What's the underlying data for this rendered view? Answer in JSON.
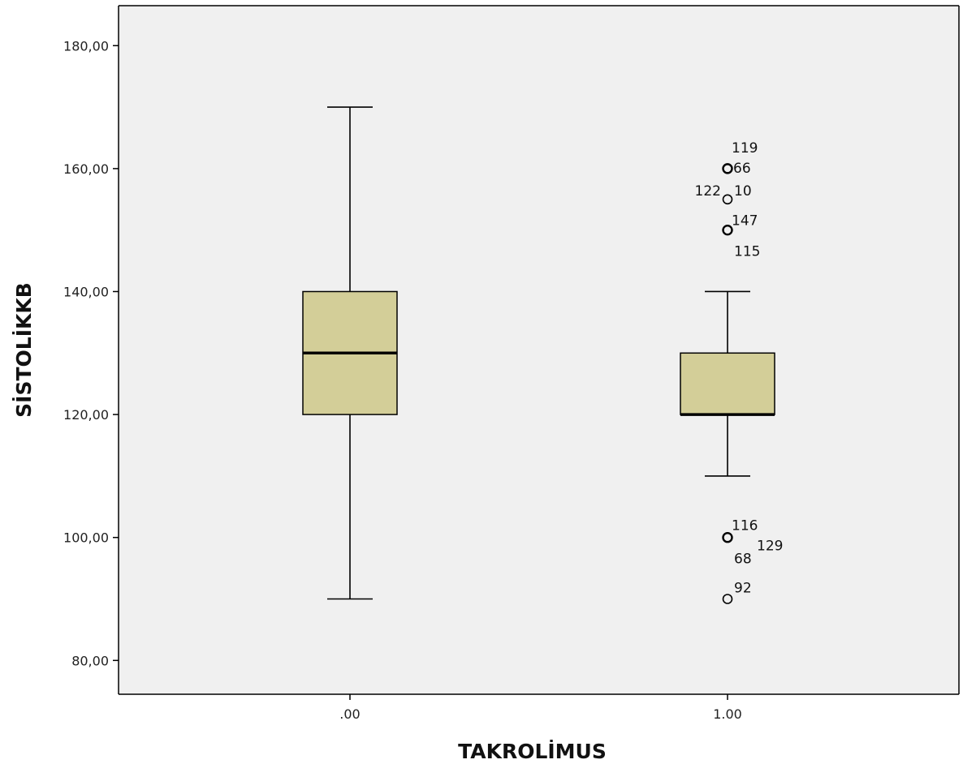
{
  "chart_data": {
    "type": "boxplot",
    "xlabel": "TAKROLİMUS",
    "ylabel": "SİSTOLİKKB",
    "ylim": [
      74.5,
      186.5
    ],
    "y_ticks": [
      80,
      100,
      120,
      140,
      160,
      180
    ],
    "y_tick_labels": [
      "80,00",
      "100,00",
      "120,00",
      "140,00",
      "160,00",
      "180,00"
    ],
    "categories": [
      ".00",
      "1.00"
    ],
    "grid": false,
    "colors": {
      "plot_background": "#f0f0f0",
      "box_fill": "#d3ce98",
      "stroke": "#000000"
    },
    "boxes": [
      {
        "category": ".00",
        "whisker_low": 90,
        "q1": 120,
        "median": 130,
        "q3": 140,
        "whisker_high": 170,
        "outliers": []
      },
      {
        "category": "1.00",
        "whisker_low": 110,
        "q1": 120,
        "median": 120,
        "q3": 130,
        "whisker_high": 140,
        "outliers": [
          {
            "y": 160,
            "labels": [
              "119",
              "66"
            ]
          },
          {
            "y": 155,
            "labels": [
              "122",
              "10"
            ]
          },
          {
            "y": 150,
            "labels": [
              "147",
              "115"
            ]
          },
          {
            "y": 100,
            "labels": [
              "116",
              "129",
              "68"
            ]
          },
          {
            "y": 90,
            "labels": [
              "92"
            ]
          }
        ]
      }
    ]
  }
}
